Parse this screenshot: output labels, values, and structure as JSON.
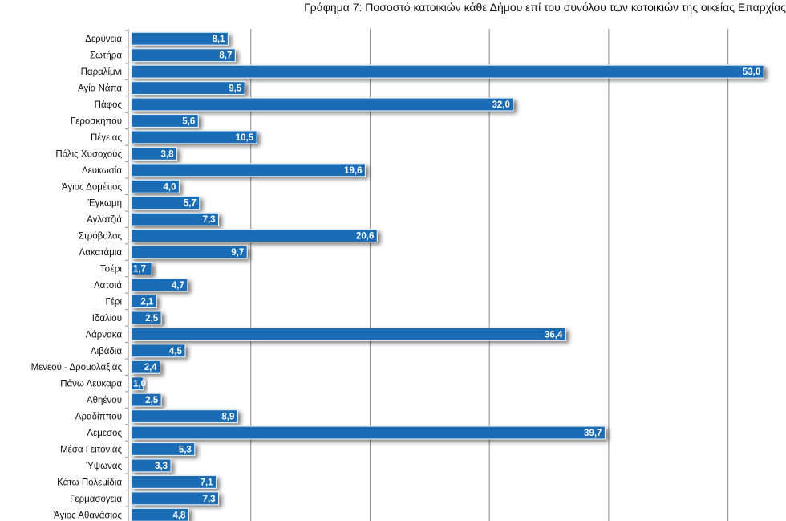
{
  "title": "Γράφημα 7: Ποσοστό κατοικιών κάθε Δήμου επί του συνόλου των κατοικιών της οικείας Επαρχίας",
  "colors": {
    "bar": "#1a6db5",
    "bar_stroke": "#e8eef5",
    "grid": "#8a8a8a",
    "shadow": "#000000"
  },
  "chart_data": {
    "type": "bar",
    "orientation": "horizontal",
    "title": "Γράφημα 7: Ποσοστό κατοικιών κάθε Δήμου επί του συνόλου των κατοικιών της οικείας Επαρχίας",
    "categories": [
      "Δερύνεια",
      "Σωτήρα",
      "Παραλίμνι",
      "Αγία Νάπα",
      "Πάφος",
      "Γεροσκήπου",
      "Πέγειας",
      "Πόλις Χυσοχούς",
      "Λευκωσία",
      "Άγιος Δομέτιος",
      "Έγκωμη",
      "Αγλατζιά",
      "Στρόβολος",
      "Λακατάμια",
      "Τσέρι",
      "Λατσιά",
      "Γέρι",
      "Ιδαλίου",
      "Λάρνακα",
      "Λιβάδια",
      "Μενεού - Δρομολαξιάς",
      "Πάνω Λεύκαρα",
      "Αθηένου",
      "Αραδίππου",
      "Λεμεσός",
      "Μέσα Γειτονιάς",
      "Ύψωνας",
      "Κάτω Πολεμίδια",
      "Γερμασόγεια",
      "Άγιος Αθανάσιος"
    ],
    "values": [
      8.1,
      8.7,
      53.0,
      9.5,
      32.0,
      5.6,
      10.5,
      3.8,
      19.6,
      4.0,
      5.7,
      7.3,
      20.6,
      9.7,
      1.7,
      4.7,
      2.1,
      2.5,
      36.4,
      4.5,
      2.4,
      1.0,
      2.5,
      8.9,
      39.7,
      5.3,
      3.3,
      7.1,
      7.3,
      4.8
    ],
    "value_labels": [
      "8,1",
      "8,7",
      "53,0",
      "9,5",
      "32,0",
      "5,6",
      "10,5",
      "3,8",
      "19,6",
      "4,0",
      "5,7",
      "7,3",
      "20,6",
      "9,7",
      "1,7",
      "4,7",
      "2,1",
      "2,5",
      "36,4",
      "4,5",
      "2,4",
      "1,0",
      "2,5",
      "8,9",
      "39,7",
      "5,3",
      "3,3",
      "7,1",
      "7,3",
      "4,8"
    ],
    "xlim": [
      0,
      55
    ],
    "gridlines_at": [
      0,
      10,
      20,
      30,
      40,
      50
    ],
    "grid": true,
    "legend": "none"
  }
}
